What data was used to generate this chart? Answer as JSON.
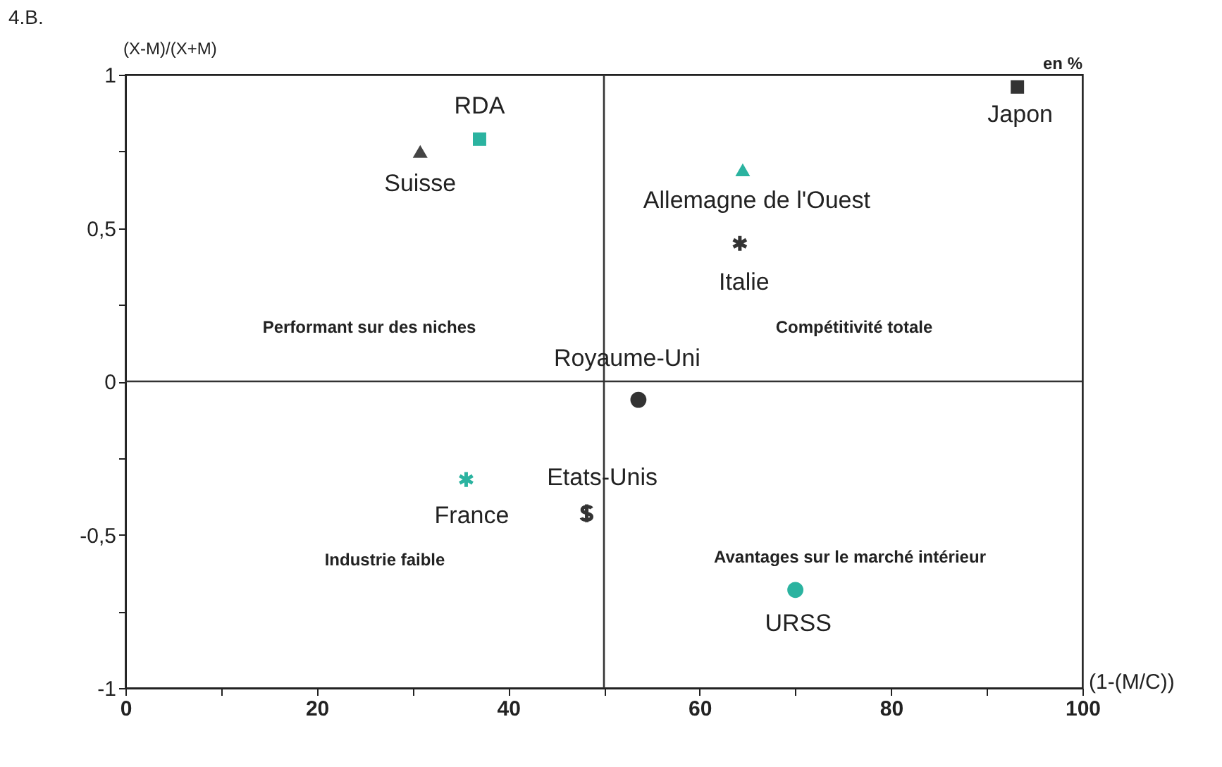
{
  "chart_data": {
    "type": "scatter",
    "title": "4.B.",
    "xlabel": "(1-(M/C))",
    "ylabel": "(X-M)/(X+M)",
    "annotations": [
      "en %",
      "Performant sur des niches",
      "Compétitivité totale",
      "Industrie faible",
      "Avantages sur le marché intérieur"
    ],
    "xlim": [
      0,
      100
    ],
    "ylim": [
      -1,
      1
    ],
    "xticks": [
      0,
      {
        "value": 10,
        "label": null
      },
      20,
      {
        "value": 30,
        "label": null
      },
      40,
      {
        "value": 50,
        "label": null
      },
      60,
      {
        "value": 70,
        "label": null
      },
      80,
      {
        "value": 90,
        "label": null
      },
      100
    ],
    "yticks": [
      -1,
      {
        "value": -0.75,
        "label": null
      },
      {
        "value": -0.5,
        "label": "-0,5"
      },
      {
        "value": -0.25,
        "label": null
      },
      0,
      {
        "value": 0.25,
        "label": null
      },
      {
        "value": 0.5,
        "label": "0,5"
      },
      {
        "value": 0.75,
        "label": null
      },
      1
    ],
    "grid": false,
    "legend": false,
    "ref_lines": [
      {
        "axis": "x",
        "value": 50,
        "color": "#333333"
      },
      {
        "axis": "y",
        "value": 0,
        "color": "#333333"
      }
    ],
    "series": [
      {
        "name": "Suisse",
        "color": "#444444",
        "marker": "triangle",
        "x": [
          30.8
        ],
        "values": [
          0.75
        ]
      },
      {
        "name": "RDA",
        "color": "#2bb3a0",
        "marker": "square",
        "x": [
          37
        ],
        "values": [
          0.79
        ]
      },
      {
        "name": "Japon",
        "color": "#333333",
        "marker": "square",
        "x": [
          93.2
        ],
        "values": [
          0.96
        ]
      },
      {
        "name": "Allemagne de l'Ouest",
        "color": "#2bb3a0",
        "marker": "triangle",
        "x": [
          64.5
        ],
        "values": [
          0.69
        ]
      },
      {
        "name": "Italie",
        "color": "#333333",
        "marker": "cross",
        "x": [
          64.2
        ],
        "values": [
          0.45
        ]
      },
      {
        "name": "Royaume-Uni",
        "color": "#333333",
        "marker": "circle",
        "x": [
          53.6
        ],
        "values": [
          -0.06
        ]
      },
      {
        "name": "France",
        "color": "#2bb3a0",
        "marker": "cross",
        "x": [
          35.6
        ],
        "values": [
          -0.32
        ]
      },
      {
        "name": "Etats-Unis",
        "color": "#333333",
        "x": [
          48.2
        ],
        "values": [
          -0.43
        ]
      },
      {
        "name": "URSS",
        "color": "#2bb3a0",
        "marker": "circle",
        "x": [
          70
        ],
        "values": [
          -0.68
        ]
      }
    ]
  }
}
